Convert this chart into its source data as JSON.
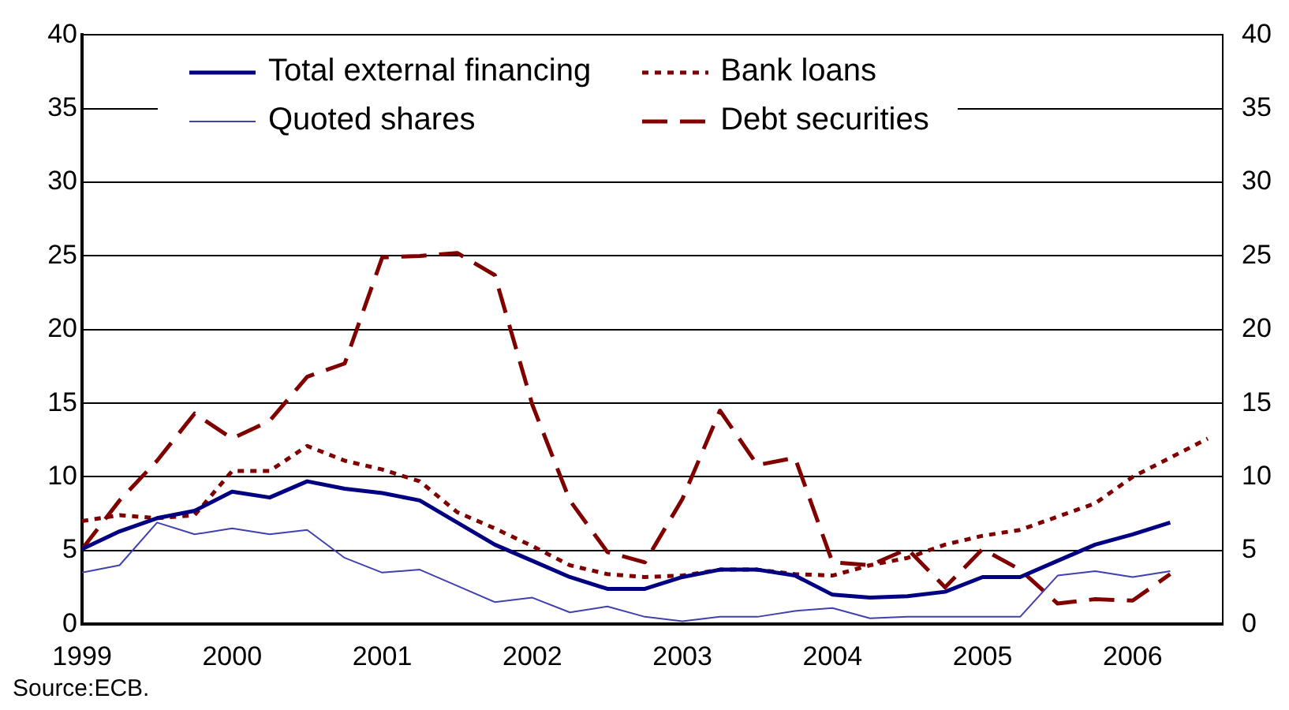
{
  "chart_data": {
    "type": "line",
    "x": [
      1999,
      1999.25,
      1999.5,
      1999.75,
      2000,
      2000.25,
      2000.5,
      2000.75,
      2001,
      2001.25,
      2001.5,
      2001.75,
      2002,
      2002.25,
      2002.5,
      2002.75,
      2003,
      2003.25,
      2003.5,
      2003.75,
      2004,
      2004.25,
      2004.5,
      2004.75,
      2005,
      2005.25,
      2005.5,
      2005.75,
      2006,
      2006.25,
      2006.5
    ],
    "series": [
      {
        "name": "Total external financing",
        "color": "#000080",
        "line_style": "solid",
        "values": [
          5.1,
          6.3,
          7.2,
          7.7,
          9.0,
          8.6,
          9.7,
          9.2,
          8.9,
          8.4,
          6.9,
          5.4,
          4.3,
          3.2,
          2.4,
          2.4,
          3.2,
          3.7,
          3.7,
          3.3,
          2.0,
          1.8,
          1.9,
          2.2,
          3.2,
          3.2,
          4.3,
          5.4,
          6.1,
          6.9,
          null
        ]
      },
      {
        "name": "Bank loans",
        "color": "#800000",
        "line_style": "dotted",
        "values": [
          7.0,
          7.4,
          7.2,
          7.4,
          10.4,
          10.4,
          12.1,
          11.1,
          10.5,
          9.7,
          7.6,
          6.5,
          5.3,
          4.0,
          3.4,
          3.2,
          3.3,
          3.7,
          3.7,
          3.4,
          3.3,
          4.0,
          4.5,
          5.4,
          6.0,
          6.4,
          7.3,
          8.2,
          10.0,
          11.3,
          12.6
        ]
      },
      {
        "name": "Quoted shares",
        "color": "#4040b0",
        "line_style": "solid",
        "values": [
          3.5,
          4.0,
          6.9,
          6.1,
          6.5,
          6.1,
          6.4,
          4.5,
          3.5,
          3.7,
          2.6,
          1.5,
          1.8,
          0.8,
          1.2,
          0.5,
          0.2,
          0.5,
          0.5,
          0.9,
          1.1,
          0.4,
          0.5,
          0.5,
          0.5,
          0.5,
          3.3,
          3.6,
          3.2,
          3.6,
          null
        ]
      },
      {
        "name": "Debt securities",
        "color": "#800000",
        "line_style": "dashed",
        "values": [
          5.1,
          8.4,
          11.1,
          14.3,
          12.6,
          13.8,
          16.8,
          17.7,
          24.9,
          25.0,
          25.2,
          23.7,
          14.9,
          8.4,
          4.9,
          4.2,
          8.5,
          14.5,
          10.8,
          11.3,
          4.2,
          4.0,
          5.1,
          2.5,
          5.1,
          3.7,
          1.4,
          1.7,
          1.6,
          3.4,
          null
        ]
      }
    ],
    "xlim": [
      1999,
      2006.6
    ],
    "xticks": [
      1999,
      2000,
      2001,
      2002,
      2003,
      2004,
      2005,
      2006
    ],
    "ylim": [
      0,
      40
    ],
    "yticks": [
      0,
      5,
      10,
      15,
      20,
      25,
      30,
      35,
      40
    ],
    "y2lim": [
      0,
      40
    ],
    "y2ticks": [
      0,
      5,
      10,
      15,
      20,
      25,
      30,
      35,
      40
    ],
    "grid": "y",
    "legend": "top",
    "marker": "none",
    "annotations": [
      "Source:ECB."
    ]
  }
}
